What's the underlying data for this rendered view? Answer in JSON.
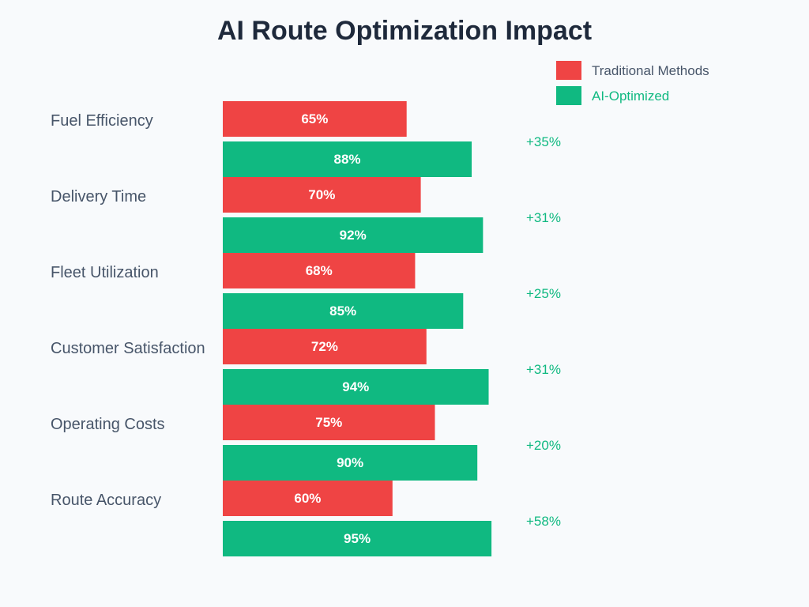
{
  "colors": {
    "background": "#f8fafc",
    "traditional": "#ef4444",
    "ai": "#10b981",
    "improvement_text": "#10b981",
    "title_text": "#1e293b",
    "label_text": "#475569",
    "bar_label_text": "#ffffff"
  },
  "chart_data": {
    "type": "bar",
    "orientation": "horizontal",
    "title": "AI Route Optimization Impact",
    "xlabel": "",
    "ylabel": "",
    "unit": "%",
    "xlim": [
      0,
      100
    ],
    "grid": false,
    "legend_position": "top-right",
    "categories": [
      "Fuel Efficiency",
      "Delivery Time",
      "Fleet Utilization",
      "Customer Satisfaction",
      "Operating Costs",
      "Route Accuracy"
    ],
    "series": [
      {
        "name": "Traditional Methods",
        "color": "#ef4444",
        "values": [
          65,
          70,
          68,
          72,
          75,
          60
        ]
      },
      {
        "name": "AI-Optimized",
        "color": "#10b981",
        "values": [
          88,
          92,
          85,
          94,
          90,
          95
        ]
      }
    ],
    "improvements": [
      "+35%",
      "+31%",
      "+25%",
      "+31%",
      "+20%",
      "+58%"
    ]
  }
}
